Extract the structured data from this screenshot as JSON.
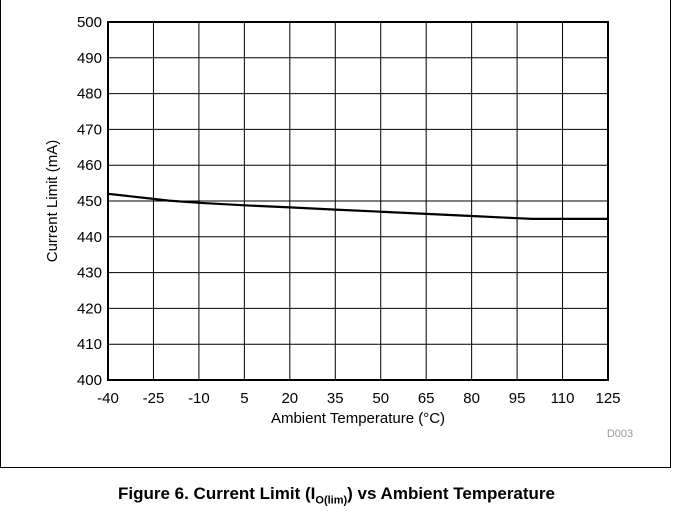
{
  "chart_data": {
    "type": "line",
    "title": "",
    "xlabel": "Ambient Temperature (°C)",
    "ylabel": "Current Limit (mA)",
    "xlim": [
      -40,
      125
    ],
    "ylim": [
      400,
      500
    ],
    "x_ticks": [
      "-40",
      "-25",
      "-10",
      "5",
      "20",
      "35",
      "50",
      "65",
      "80",
      "95",
      "110",
      "125"
    ],
    "y_ticks": [
      "400",
      "410",
      "420",
      "430",
      "440",
      "450",
      "460",
      "470",
      "480",
      "490",
      "500"
    ],
    "grid": true,
    "series": [
      {
        "color": "#000000",
        "x": [
          -40,
          -25,
          -20,
          -10,
          5,
          20,
          35,
          50,
          65,
          80,
          95,
          100,
          110,
          125
        ],
        "y": [
          452,
          450.6,
          450.1,
          449.5,
          448.8,
          448.2,
          447.6,
          447,
          446.4,
          445.8,
          445.2,
          445,
          445,
          445
        ]
      }
    ],
    "figure_id": "D003"
  },
  "caption": {
    "prefix": "Figure 6. Current Limit (I",
    "subscript": "O(lim)",
    "suffix": ") vs Ambient Temperature"
  }
}
